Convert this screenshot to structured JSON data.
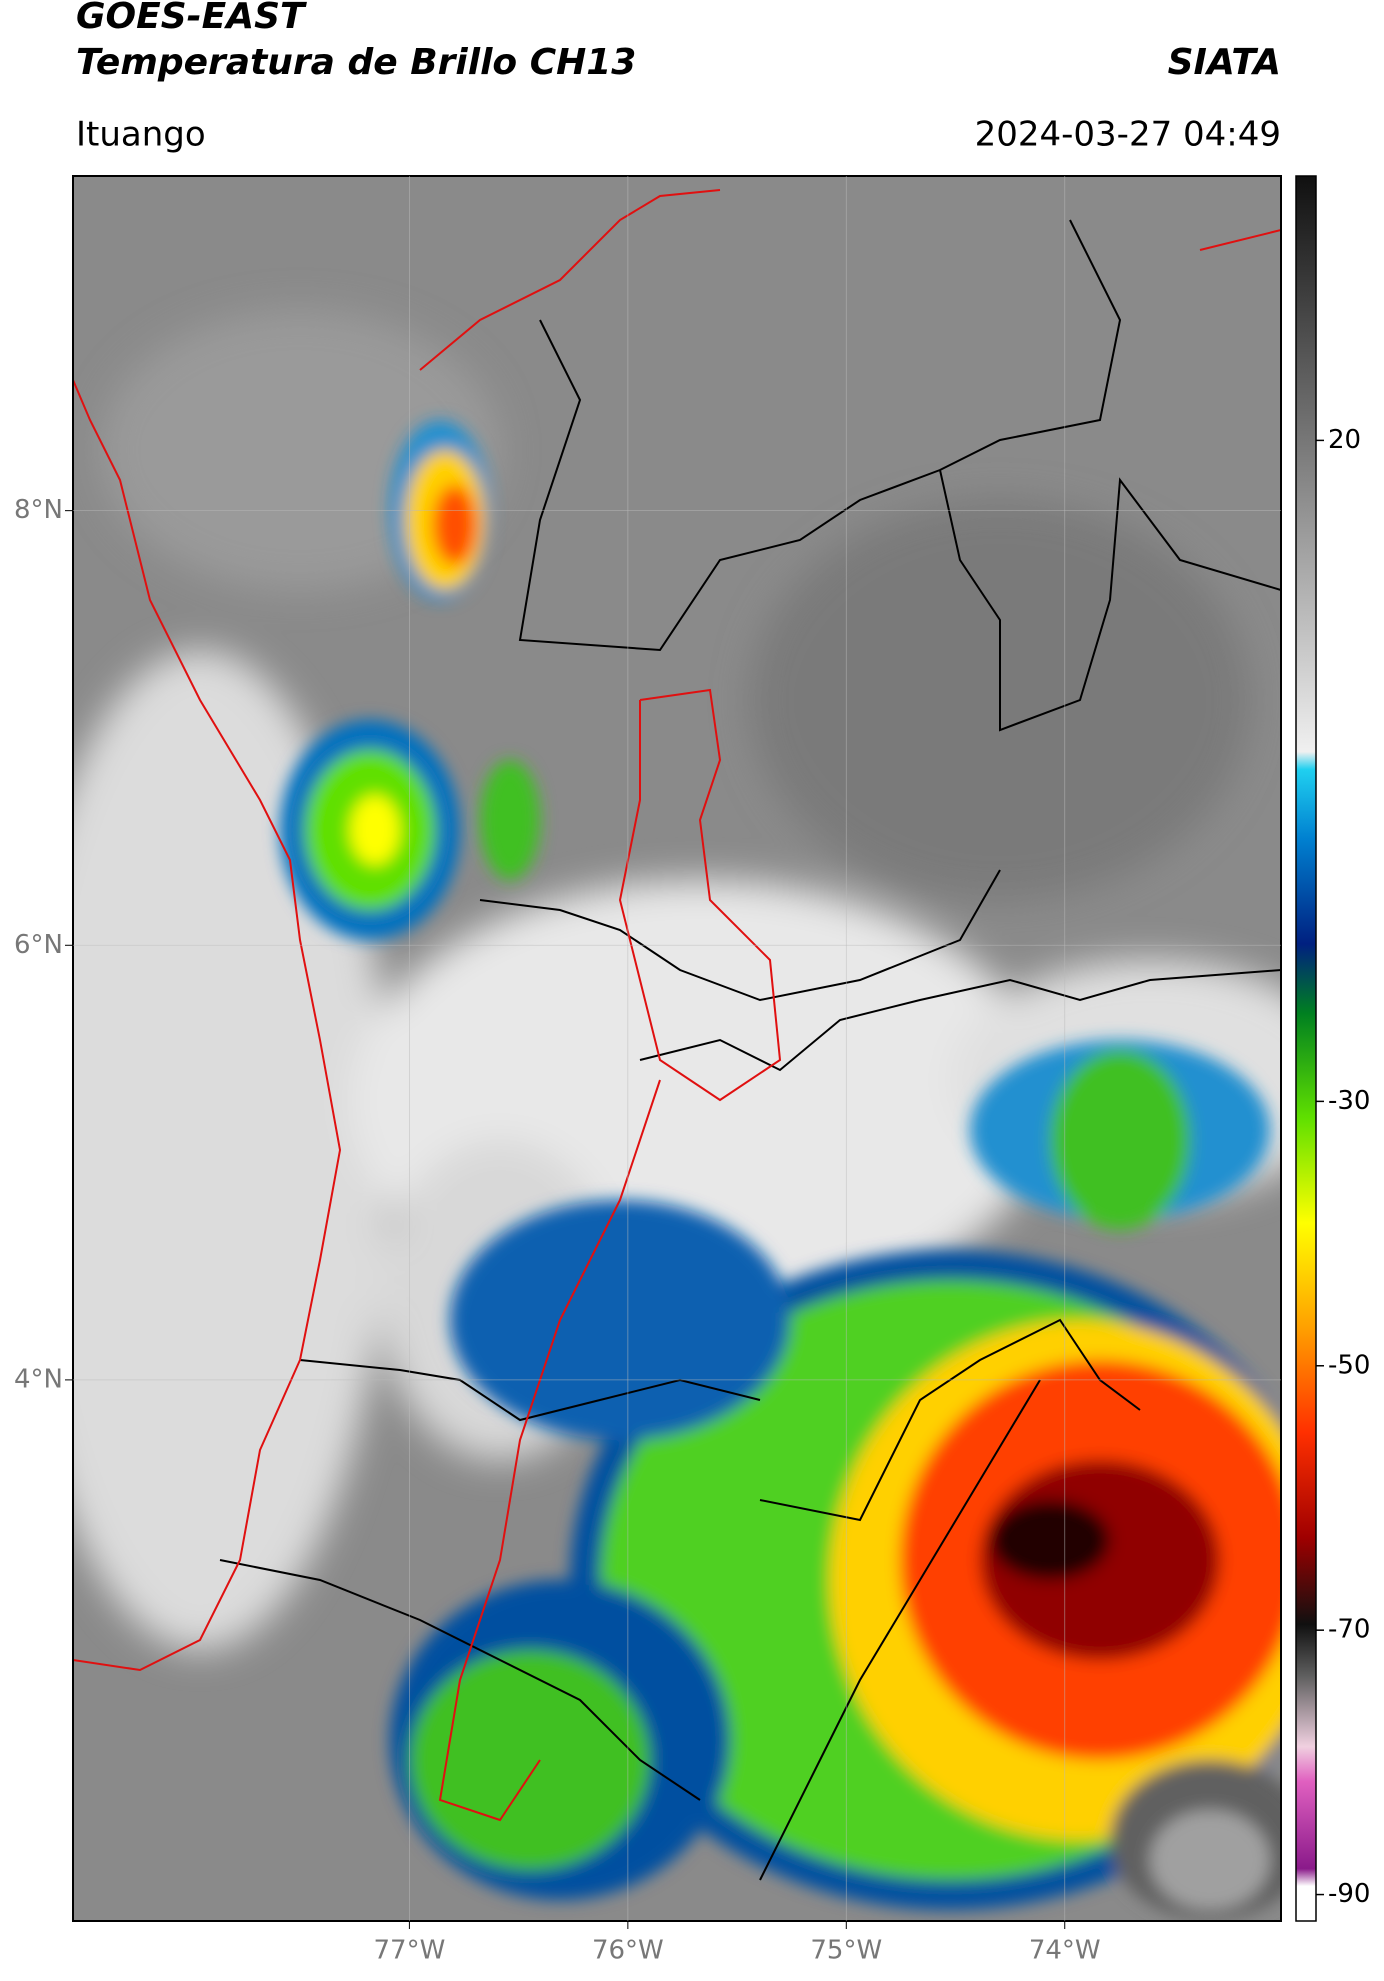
{
  "header": {
    "title": "GOES-EAST",
    "subtitle": "Temperatura de Brillo CH13",
    "source": "SIATA",
    "location": "Ituango",
    "datetime": "2024-03-27 04:49"
  },
  "map": {
    "latlim": [
      1.51,
      9.54
    ],
    "lonlim": [
      -78.54,
      -73.01
    ],
    "lat_ticks": [
      {
        "value": 8,
        "label": "8°N"
      },
      {
        "value": 6,
        "label": "6°N"
      },
      {
        "value": 4,
        "label": "4°N"
      }
    ],
    "lon_ticks": [
      {
        "value": -77,
        "label": "77°W"
      },
      {
        "value": -76,
        "label": "76°W"
      },
      {
        "value": -75,
        "label": "75°W"
      },
      {
        "value": -74,
        "label": "74°W"
      }
    ]
  },
  "colorbar": {
    "lim": [
      -92,
      40
    ],
    "ticks": [
      20,
      -30,
      -50,
      -70,
      -90
    ]
  }
}
